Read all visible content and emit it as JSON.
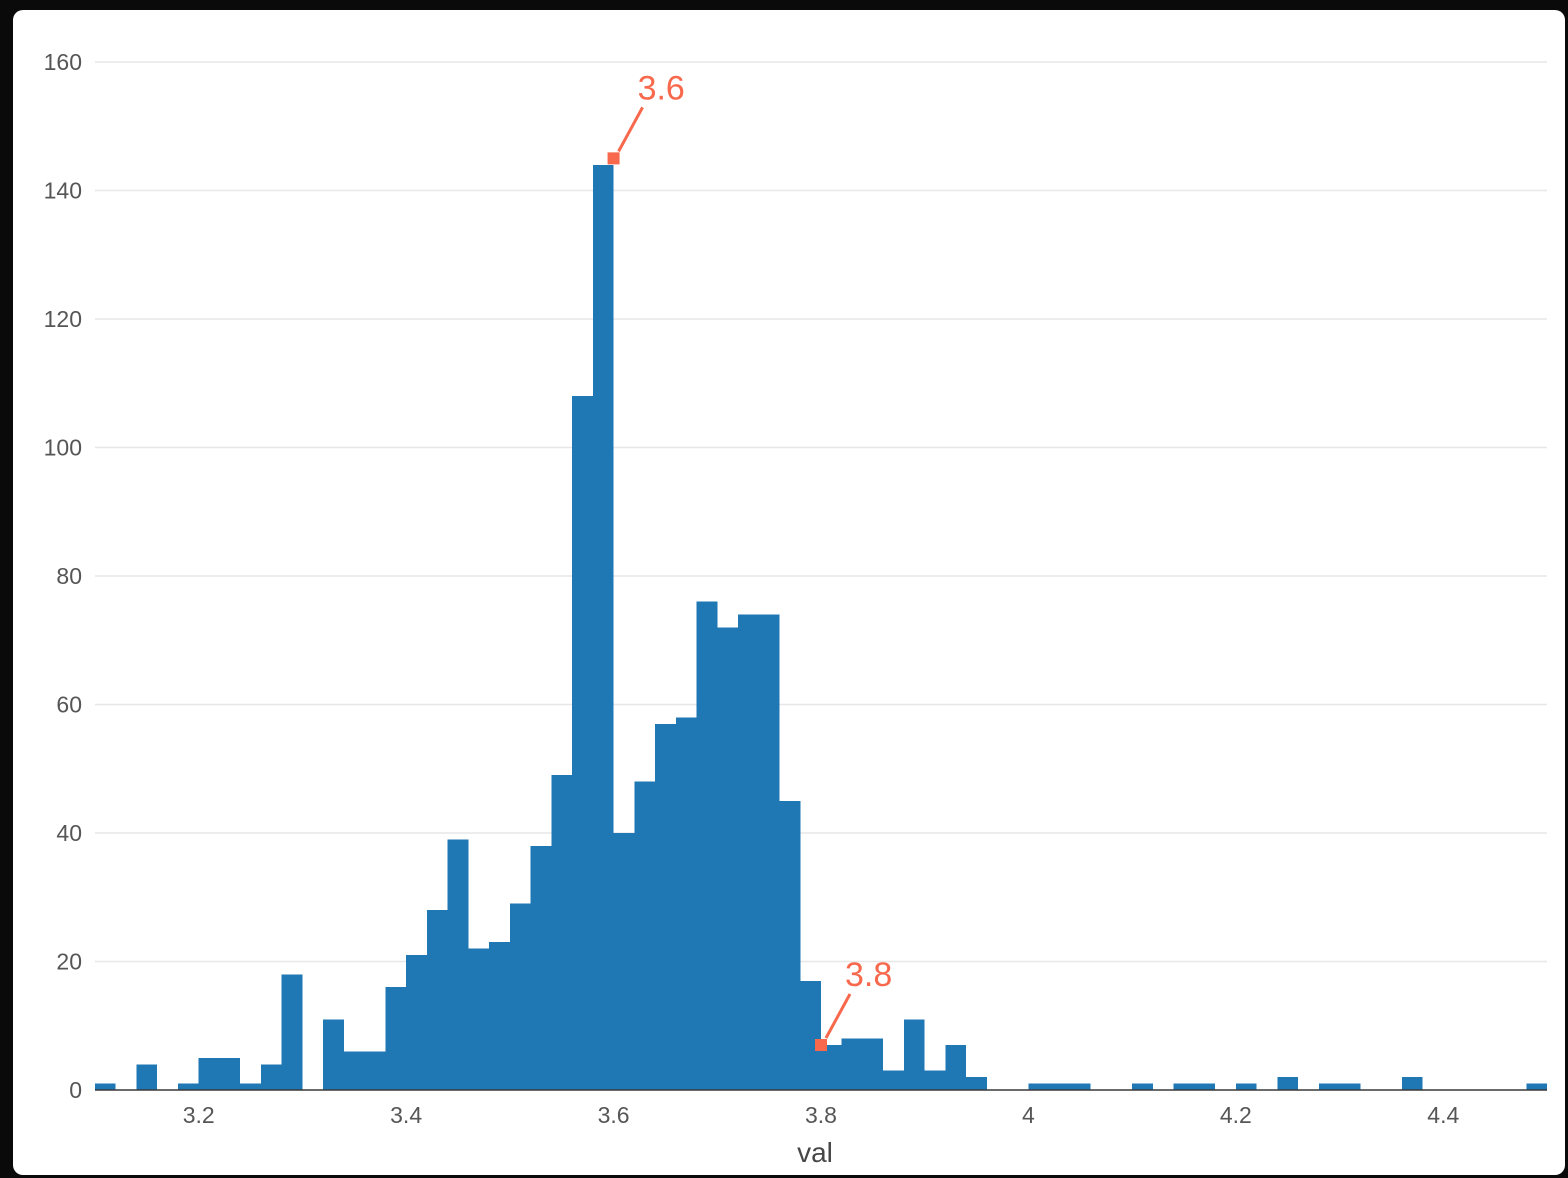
{
  "window": {
    "frame_color": "#0a0a0a",
    "panel_color": "#ffffff"
  },
  "chart_data": {
    "type": "bar",
    "subtype": "histogram",
    "title": "",
    "xlabel": "val",
    "ylabel": "",
    "xlim": [
      3.1,
      4.5
    ],
    "ylim": [
      0,
      160
    ],
    "xticks": [
      3.2,
      3.4,
      3.6,
      3.8,
      4,
      4.2,
      4.4
    ],
    "xtick_labels": [
      "3.2",
      "3.4",
      "3.6",
      "3.8",
      "4",
      "4.2",
      "4.4"
    ],
    "yticks": [
      0,
      20,
      40,
      60,
      80,
      100,
      120,
      140,
      160
    ],
    "grid": true,
    "grid_color": "#e7e7e7",
    "axis_line_color": "#3a3a3a",
    "bar_color": "#1f77b4",
    "annotation_color": "#f8684c",
    "bin_start": 3.1,
    "bin_width": 0.02,
    "counts": [
      1,
      0,
      4,
      0,
      1,
      5,
      5,
      1,
      4,
      18,
      0,
      11,
      6,
      6,
      16,
      21,
      28,
      39,
      22,
      23,
      29,
      38,
      49,
      108,
      144,
      40,
      48,
      57,
      58,
      76,
      72,
      74,
      74,
      45,
      17,
      7,
      8,
      8,
      3,
      11,
      3,
      7,
      2,
      0,
      0,
      1,
      1,
      1,
      0,
      0,
      1,
      0,
      1,
      1,
      0,
      1,
      0,
      2,
      0,
      1,
      1,
      0,
      0,
      2,
      0,
      0,
      0,
      0,
      0,
      1
    ],
    "annotations": [
      {
        "x": 3.6,
        "y": 145,
        "label": "3.6"
      },
      {
        "x": 3.8,
        "y": 7,
        "label": "3.8"
      }
    ]
  }
}
